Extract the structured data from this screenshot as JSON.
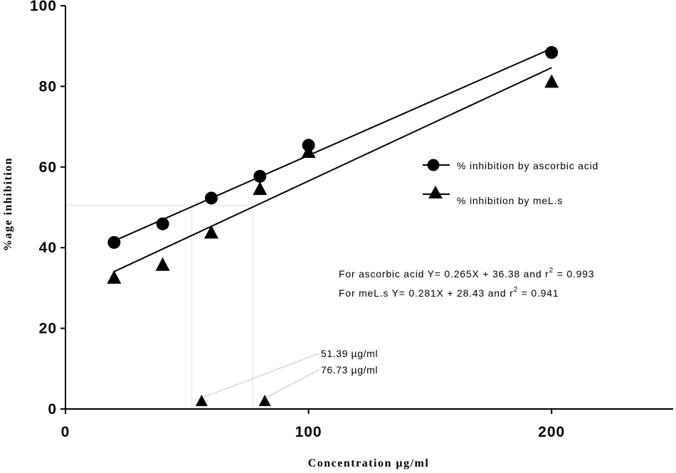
{
  "chart_data": {
    "type": "scatter",
    "title": "",
    "xlabel": "Concentration µg/ml",
    "ylabel": "%age inhibition",
    "xlim": [
      0,
      250
    ],
    "ylim": [
      0,
      100
    ],
    "x_ticks": [
      0,
      100,
      200
    ],
    "y_ticks": [
      0,
      20,
      40,
      60,
      80,
      100
    ],
    "x_tick_labels": [
      "0",
      "100",
      "200"
    ],
    "y_tick_labels": [
      "0",
      "20",
      "40",
      "60",
      "80",
      "100"
    ],
    "grid": false,
    "legend_position": "right",
    "series": [
      {
        "name": "% inhibition by ascorbic acid",
        "marker": "circle",
        "color": "#000000",
        "points": [
          [
            20,
            41.3
          ],
          [
            40,
            45.9
          ],
          [
            60,
            52.3
          ],
          [
            80,
            57.7
          ],
          [
            100,
            65.4
          ],
          [
            200,
            88.4
          ]
        ],
        "fit": {
          "slope": 0.265,
          "intercept": 36.38,
          "x_range": [
            20,
            200
          ]
        }
      },
      {
        "name": "% inhibition by meL.s",
        "marker": "triangle",
        "color": "#000000",
        "points": [
          [
            20,
            32.4
          ],
          [
            40,
            35.6
          ],
          [
            60,
            43.6
          ],
          [
            80,
            54.4
          ],
          [
            100,
            63.6
          ],
          [
            200,
            81.0
          ]
        ],
        "fit": {
          "slope": 0.281,
          "intercept": 28.43,
          "x_range": [
            20,
            200
          ]
        }
      }
    ],
    "equations": {
      "ascorbic_prefix": "For ascorbic acid Y= 0.265X + 36.38 and r",
      "ascorbic_sup": "2",
      "ascorbic_suffix": " = 0.993",
      "mels_prefix": "For meL.s Y= 0.281X + 28.43 and r",
      "mels_sup": "2",
      "mels_suffix": " = 0.941"
    },
    "annotations": [
      {
        "label": "51.39 µg/ml",
        "x": 56,
        "y": 1.5
      },
      {
        "label": "76.73 µg/ml",
        "x": 82,
        "y": 1.5
      }
    ],
    "ic50_guides": {
      "y": 50.5,
      "x_values": [
        52,
        77
      ]
    }
  }
}
